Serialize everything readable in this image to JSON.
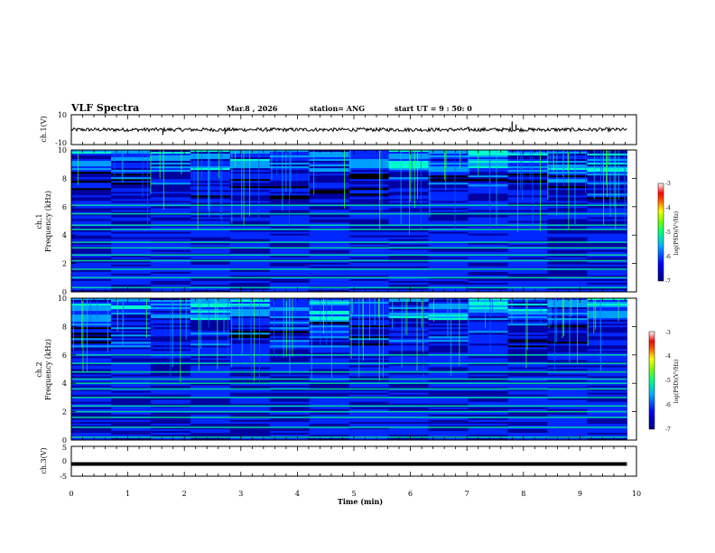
{
  "header": {
    "title": "VLF Spectra",
    "date": "Mar.8 , 2026",
    "station": "station= ANG",
    "start": "start UT = 9 : 50: 0"
  },
  "chart_data": [
    {
      "type": "line",
      "name": "ch1-waveform",
      "ylabel": "ch.1(V)",
      "ylim": [
        -10,
        10
      ],
      "ytick_labels": [
        "10",
        "-10"
      ],
      "baseline": 0,
      "spikes": [
        {
          "t": 1.62,
          "v": -3.5
        },
        {
          "t": 2.72,
          "v": -3.0
        },
        {
          "t": 7.03,
          "v": 2.0
        },
        {
          "t": 7.8,
          "v": 5.5
        },
        {
          "t": 7.87,
          "v": 3.5
        }
      ]
    },
    {
      "type": "heatmap",
      "name": "ch1-spectrogram",
      "ylabel_top": "ch.1",
      "ylabel": "Frequency (kHz)",
      "ylim": [
        0,
        10
      ],
      "ytick_labels": [
        "0",
        "2",
        "4",
        "6",
        "8",
        "10"
      ],
      "colorbar": {
        "label": "log(PSD)(V²/Hz)",
        "range": [
          -7,
          -3
        ],
        "tick_labels": [
          "-3",
          "-4",
          "-5",
          "-6",
          "-7"
        ]
      },
      "bright_bands_khz": [
        0.3,
        1.0,
        1.6,
        2.2,
        2.6,
        3.1,
        3.5,
        4.4,
        4.7,
        5.5,
        6.1
      ]
    },
    {
      "type": "heatmap",
      "name": "ch2-spectrogram",
      "ylabel_top": "ch.2",
      "ylabel": "Frequency (kHz)",
      "ylim": [
        0,
        10
      ],
      "ytick_labels": [
        "0",
        "2",
        "4",
        "6",
        "8",
        "10"
      ],
      "colorbar": {
        "label": "log(PSD)(V²/Hz)",
        "range": [
          -7,
          -3
        ],
        "tick_labels": [
          "-3",
          "-4",
          "-5",
          "-6",
          "-7"
        ]
      },
      "bright_bands_khz": [
        0.2,
        0.9,
        1.6,
        2.0,
        2.4,
        3.0,
        3.6,
        4.0,
        4.3,
        4.8,
        5.4,
        6.0
      ]
    },
    {
      "type": "line",
      "name": "ch3-waveform",
      "ylabel": "ch.3(V)",
      "ylim": [
        -5,
        5
      ],
      "ytick_labels": [
        "5",
        "0",
        "-5"
      ],
      "level": -0.9
    }
  ],
  "xaxis": {
    "label": "Time (min)",
    "range": [
      0,
      10
    ],
    "data_end": 9.83,
    "tick_labels": [
      "0",
      "1",
      "2",
      "3",
      "4",
      "5",
      "6",
      "7",
      "8",
      "9",
      "10"
    ]
  },
  "colors": {
    "ramp": [
      "#000000",
      "#0000a0",
      "#0028ff",
      "#00a0ff",
      "#00ffd0",
      "#30ff30",
      "#ffff00",
      "#ff8000",
      "#ff0000",
      "#ffffff"
    ]
  }
}
